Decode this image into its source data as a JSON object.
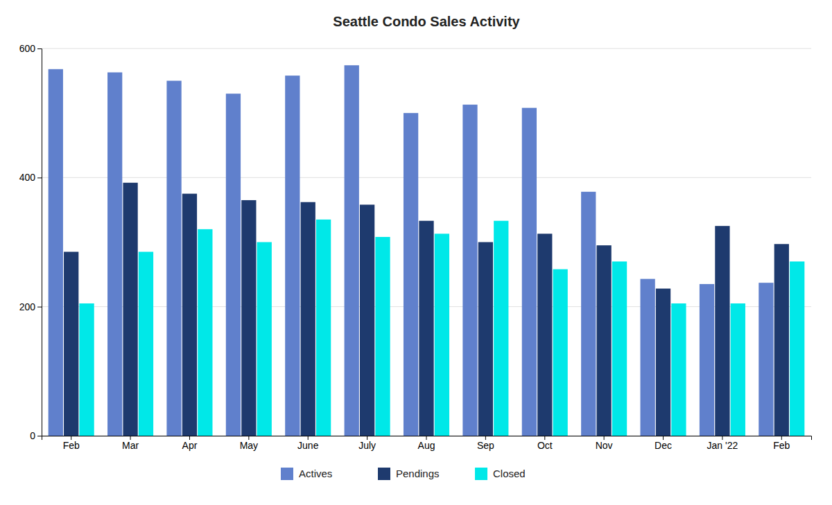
{
  "chart_data": {
    "type": "bar",
    "title": "Seattle Condo Sales Activity",
    "categories": [
      "Feb",
      "Mar",
      "Apr",
      "May",
      "June",
      "July",
      "Aug",
      "Sep",
      "Oct",
      "Nov",
      "Dec",
      "Jan '22",
      "Feb"
    ],
    "series": [
      {
        "name": "Actives",
        "color": "#6080CC",
        "values": [
          568,
          563,
          550,
          530,
          558,
          574,
          500,
          513,
          508,
          378,
          243,
          235,
          237
        ]
      },
      {
        "name": "Pendings",
        "color": "#1E3A6E",
        "values": [
          285,
          392,
          375,
          365,
          362,
          358,
          333,
          300,
          313,
          295,
          228,
          325,
          297
        ]
      },
      {
        "name": "Closed",
        "color": "#00E8E8",
        "values": [
          205,
          285,
          320,
          300,
          335,
          308,
          313,
          333,
          258,
          270,
          205,
          205,
          270
        ]
      }
    ],
    "ylim": [
      0,
      600
    ],
    "yticks": [
      0,
      200,
      400,
      600
    ],
    "grid": true,
    "legend": "bottom"
  }
}
